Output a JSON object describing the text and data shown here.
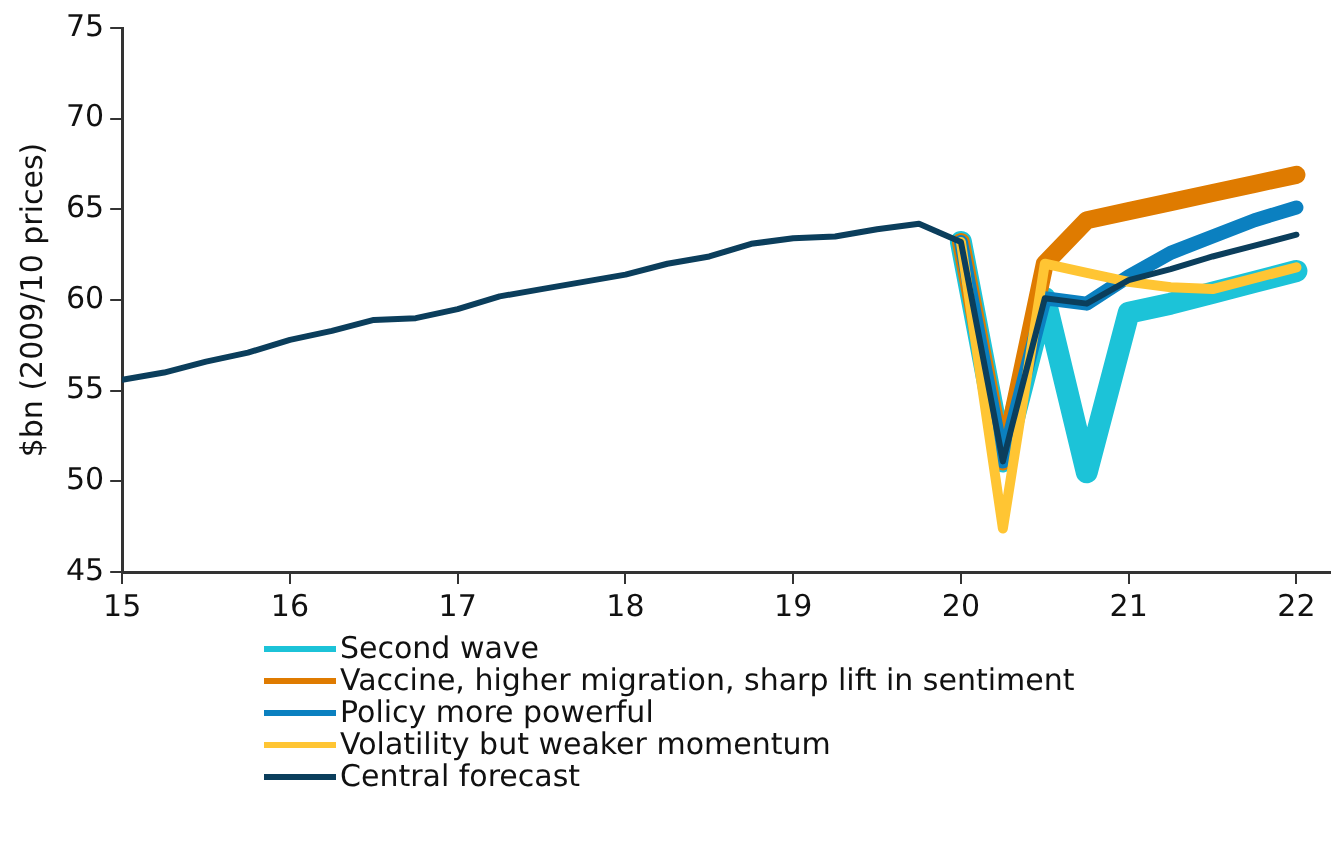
{
  "chart_data": {
    "type": "line",
    "ylabel": "$bn (2009/10 prices)",
    "xlim": [
      15,
      22.2
    ],
    "xticks": [
      15,
      16,
      17,
      18,
      19,
      20,
      21,
      22
    ],
    "ylim": [
      45,
      75
    ],
    "yticks": [
      45,
      50,
      55,
      60,
      65,
      70,
      75
    ],
    "grid": false,
    "legend": "bottom",
    "marker": "none",
    "line_style": "solid",
    "series": [
      {
        "name": "Second wave",
        "color": "#1cc3d8",
        "x": [
          20,
          20.25,
          20.5,
          20.75,
          21,
          21.25,
          21.5,
          21.75,
          22
        ],
        "values": [
          63.2,
          51.1,
          60.1,
          50.5,
          59.3,
          59.8,
          60.4,
          61.0,
          61.6
        ]
      },
      {
        "name": "Vaccine, higher migration, sharp lift in sentiment",
        "color": "#df7b00",
        "x": [
          20,
          20.25,
          20.5,
          20.75,
          21,
          21.25,
          21.5,
          21.75,
          22
        ],
        "values": [
          63.2,
          51.1,
          62.0,
          64.4,
          64.9,
          65.4,
          65.9,
          66.4,
          66.9
        ]
      },
      {
        "name": "Policy more powerful",
        "color": "#0b80c0",
        "x": [
          20,
          20.25,
          20.5,
          20.75,
          21,
          21.25,
          21.5,
          21.75,
          22
        ],
        "values": [
          63.2,
          51.1,
          60.1,
          59.8,
          61.3,
          62.6,
          63.5,
          64.4,
          65.1
        ]
      },
      {
        "name": "Volatility but weaker momentum",
        "color": "#ffc533",
        "x": [
          20,
          20.25,
          20.5,
          20.75,
          21,
          21.25,
          21.5,
          21.75,
          22
        ],
        "values": [
          63.2,
          47.4,
          62.0,
          61.5,
          61.0,
          60.7,
          60.6,
          61.2,
          61.8
        ]
      },
      {
        "name": "Central forecast",
        "color": "#0b3e5c",
        "x": [
          15,
          15.25,
          15.5,
          15.75,
          16,
          16.25,
          16.5,
          16.75,
          17,
          17.25,
          17.5,
          17.75,
          18,
          18.25,
          18.5,
          18.75,
          19,
          19.25,
          19.5,
          19.75,
          20,
          20.25,
          20.5,
          20.75,
          21,
          21.25,
          21.5,
          21.75,
          22
        ],
        "values": [
          55.6,
          56.0,
          56.6,
          57.1,
          57.8,
          58.3,
          58.9,
          59.0,
          59.5,
          60.2,
          60.6,
          61.0,
          61.4,
          62.0,
          62.4,
          63.1,
          63.4,
          63.5,
          63.9,
          64.2,
          63.2,
          51.1,
          60.1,
          59.8,
          61.1,
          61.7,
          62.4,
          63.0,
          63.6
        ]
      }
    ]
  }
}
